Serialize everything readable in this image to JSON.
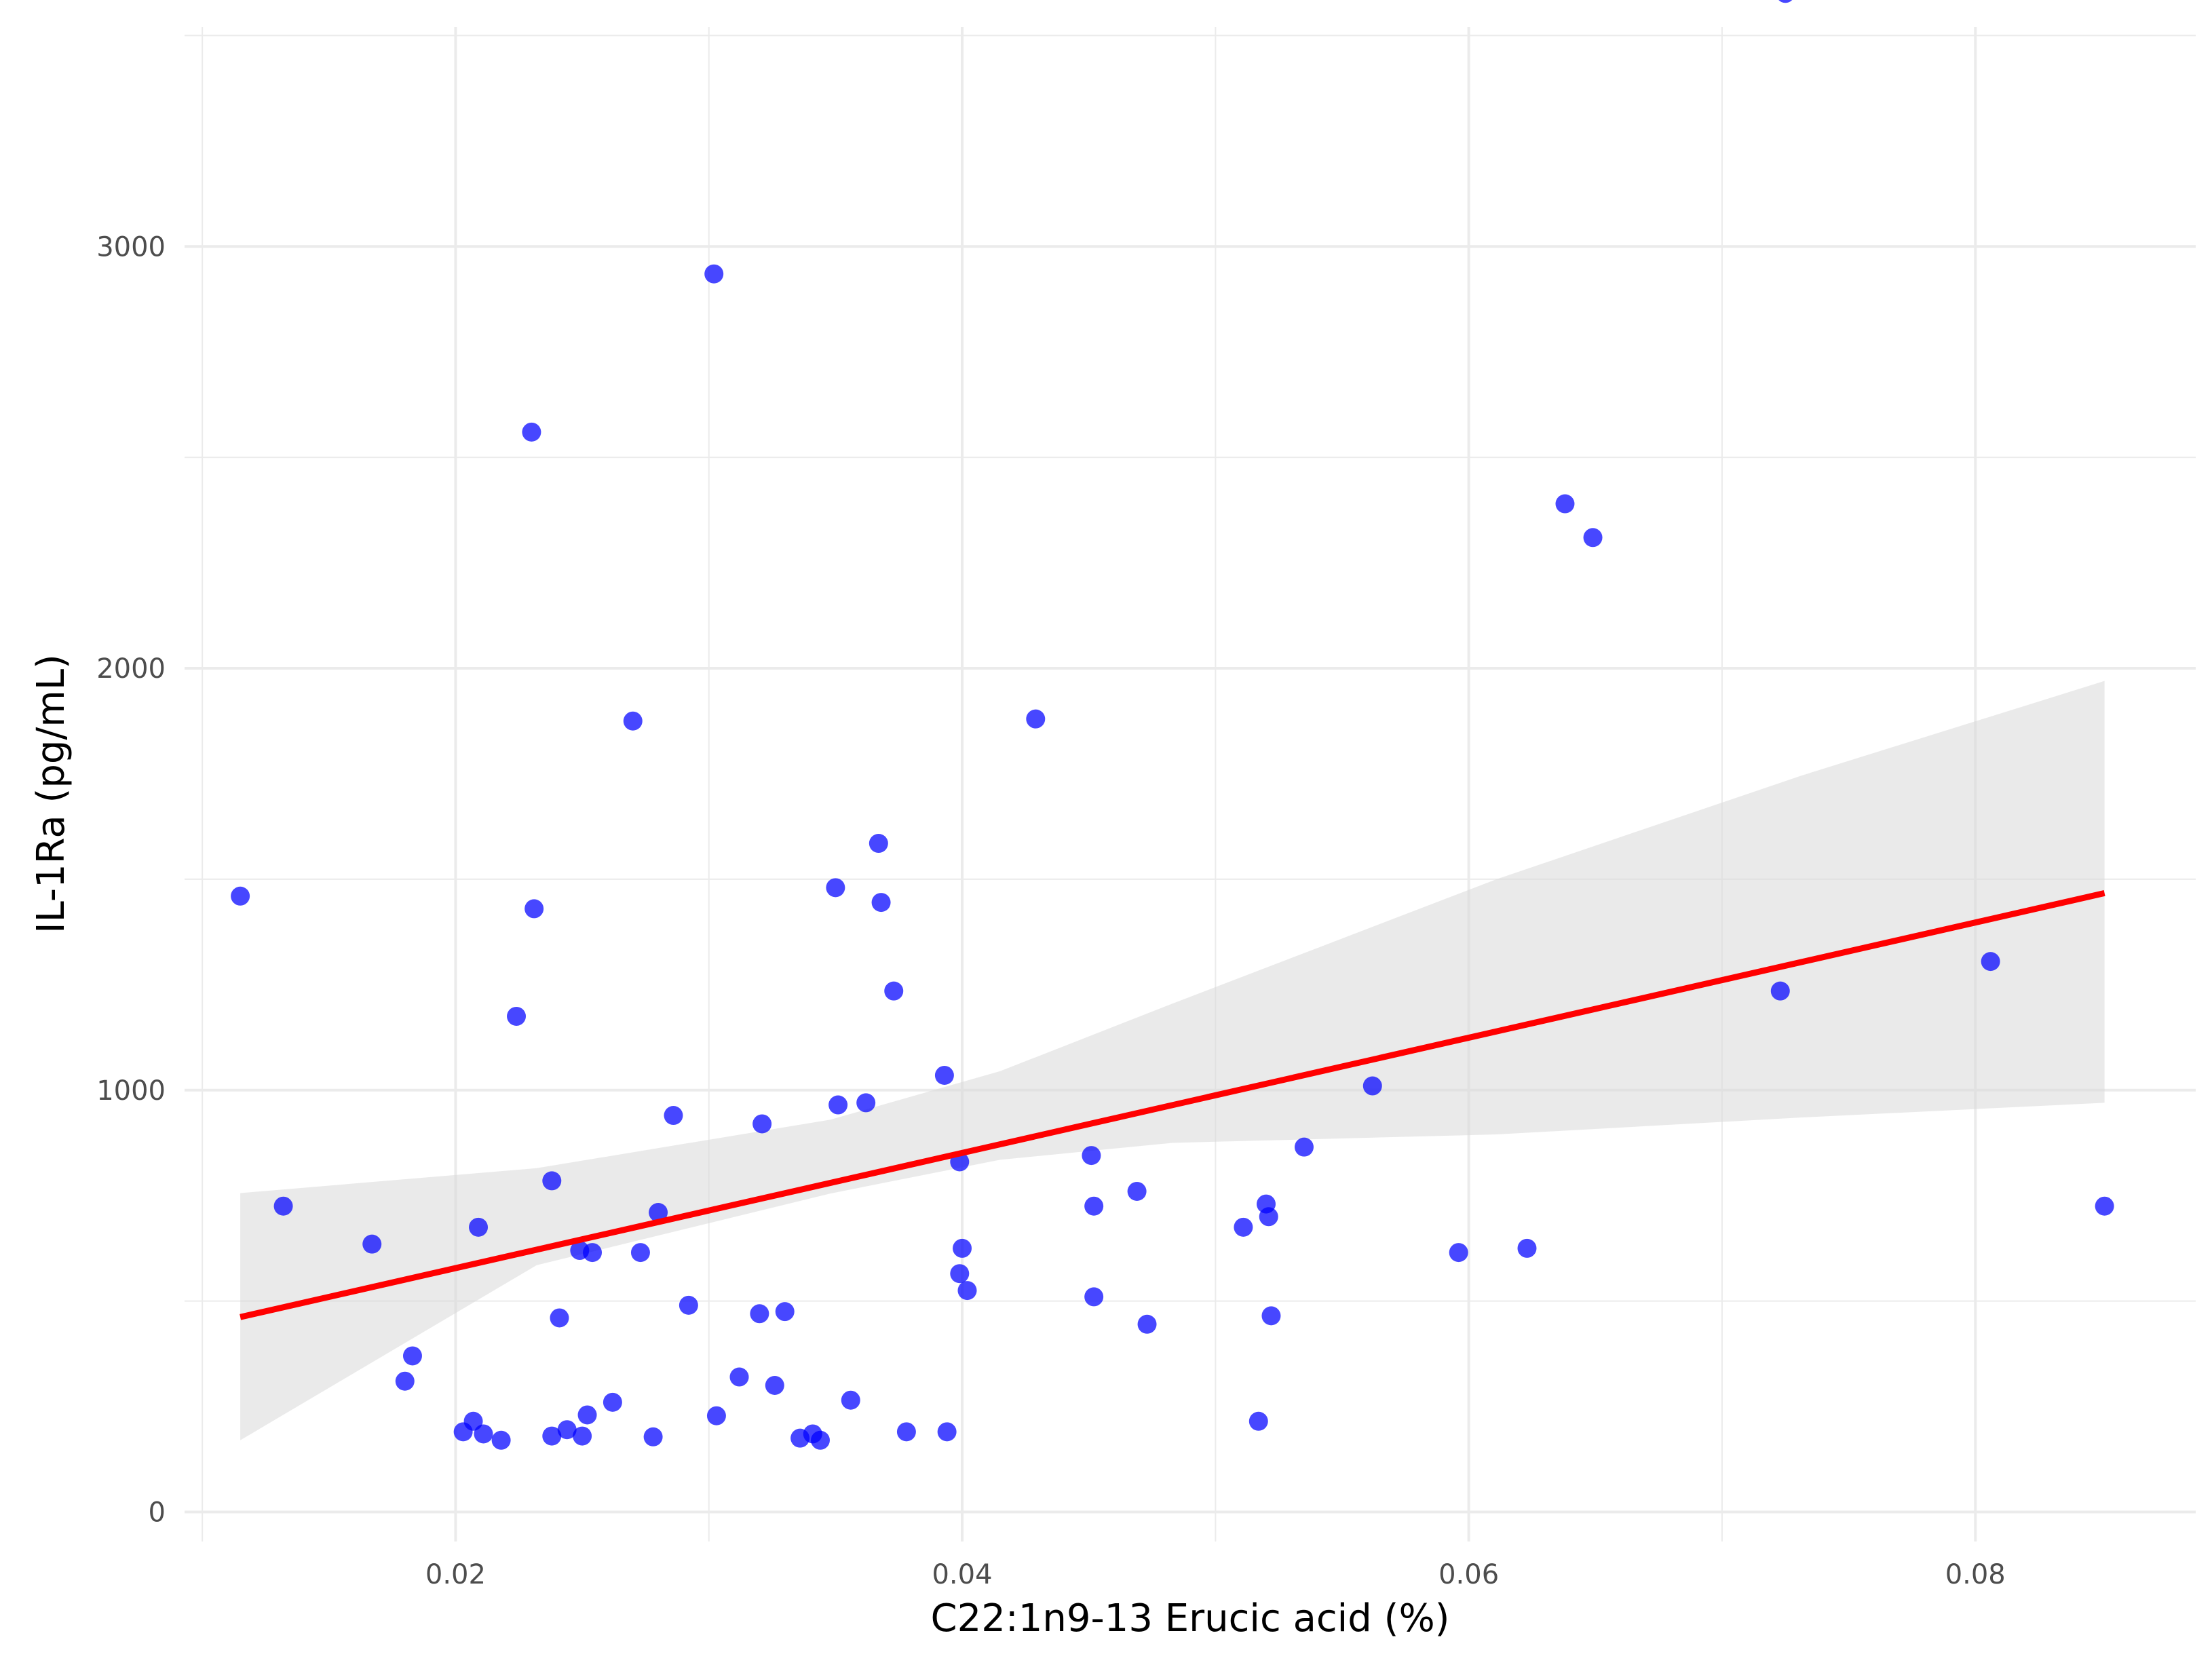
{
  "chart_data": {
    "type": "scatter",
    "title": "",
    "xlabel": "C22:1n9-13 Erucic acid (%)",
    "ylabel": "IL-1Ra (pg/mL)",
    "xlim": [
      0.0093,
      0.0887
    ],
    "ylim": [
      -70,
      3520
    ],
    "x_ticks": [
      0.02,
      0.04,
      0.06,
      0.08
    ],
    "x_tick_labels": [
      "0.02",
      "0.04",
      "0.06",
      "0.08"
    ],
    "y_ticks": [
      0,
      1000,
      2000,
      3000
    ],
    "y_tick_labels": [
      "0",
      "1000",
      "2000",
      "3000"
    ],
    "grid": true,
    "colors": {
      "points": "#0000ff",
      "fit_line": "#ff0000",
      "confidence_band": "#d9d9d9",
      "grid": "#ebebeb"
    },
    "points": [
      {
        "x": 0.0115,
        "y": 1460
      },
      {
        "x": 0.0132,
        "y": 725
      },
      {
        "x": 0.0167,
        "y": 635
      },
      {
        "x": 0.018,
        "y": 310
      },
      {
        "x": 0.0183,
        "y": 370
      },
      {
        "x": 0.0203,
        "y": 190
      },
      {
        "x": 0.0207,
        "y": 215
      },
      {
        "x": 0.0209,
        "y": 675
      },
      {
        "x": 0.0211,
        "y": 185
      },
      {
        "x": 0.0218,
        "y": 170
      },
      {
        "x": 0.0224,
        "y": 1175
      },
      {
        "x": 0.023,
        "y": 2560
      },
      {
        "x": 0.0231,
        "y": 1430
      },
      {
        "x": 0.0238,
        "y": 785
      },
      {
        "x": 0.0238,
        "y": 180
      },
      {
        "x": 0.0241,
        "y": 460
      },
      {
        "x": 0.0244,
        "y": 195
      },
      {
        "x": 0.0249,
        "y": 620
      },
      {
        "x": 0.025,
        "y": 180
      },
      {
        "x": 0.0252,
        "y": 230
      },
      {
        "x": 0.0254,
        "y": 615
      },
      {
        "x": 0.0262,
        "y": 260
      },
      {
        "x": 0.027,
        "y": 1875
      },
      {
        "x": 0.0273,
        "y": 615
      },
      {
        "x": 0.0278,
        "y": 178
      },
      {
        "x": 0.028,
        "y": 710
      },
      {
        "x": 0.0286,
        "y": 940
      },
      {
        "x": 0.0292,
        "y": 490
      },
      {
        "x": 0.0302,
        "y": 2935
      },
      {
        "x": 0.0303,
        "y": 228
      },
      {
        "x": 0.0312,
        "y": 320
      },
      {
        "x": 0.032,
        "y": 470
      },
      {
        "x": 0.0321,
        "y": 920
      },
      {
        "x": 0.0326,
        "y": 300
      },
      {
        "x": 0.033,
        "y": 475
      },
      {
        "x": 0.0336,
        "y": 175
      },
      {
        "x": 0.0341,
        "y": 185
      },
      {
        "x": 0.0344,
        "y": 170
      },
      {
        "x": 0.035,
        "y": 1480
      },
      {
        "x": 0.0351,
        "y": 965
      },
      {
        "x": 0.0356,
        "y": 265
      },
      {
        "x": 0.0362,
        "y": 970
      },
      {
        "x": 0.0367,
        "y": 1585
      },
      {
        "x": 0.0368,
        "y": 1445
      },
      {
        "x": 0.0373,
        "y": 1235
      },
      {
        "x": 0.0378,
        "y": 190
      },
      {
        "x": 0.0393,
        "y": 1035
      },
      {
        "x": 0.0394,
        "y": 190
      },
      {
        "x": 0.0399,
        "y": 830
      },
      {
        "x": 0.0399,
        "y": 565
      },
      {
        "x": 0.04,
        "y": 625
      },
      {
        "x": 0.0402,
        "y": 525
      },
      {
        "x": 0.0429,
        "y": 1880
      },
      {
        "x": 0.0451,
        "y": 845
      },
      {
        "x": 0.0452,
        "y": 725
      },
      {
        "x": 0.0452,
        "y": 510
      },
      {
        "x": 0.0469,
        "y": 760
      },
      {
        "x": 0.0473,
        "y": 445
      },
      {
        "x": 0.0511,
        "y": 675
      },
      {
        "x": 0.0517,
        "y": 215
      },
      {
        "x": 0.052,
        "y": 730
      },
      {
        "x": 0.0521,
        "y": 700
      },
      {
        "x": 0.0522,
        "y": 465
      },
      {
        "x": 0.0535,
        "y": 865
      },
      {
        "x": 0.0562,
        "y": 1010
      },
      {
        "x": 0.0596,
        "y": 615
      },
      {
        "x": 0.0623,
        "y": 625
      },
      {
        "x": 0.0638,
        "y": 2390
      },
      {
        "x": 0.0649,
        "y": 2310
      },
      {
        "x": 0.0723,
        "y": 1235
      },
      {
        "x": 0.0725,
        "y": 3600
      },
      {
        "x": 0.0806,
        "y": 1305
      },
      {
        "x": 0.0851,
        "y": 725
      }
    ],
    "fit": {
      "x": [
        0.0115,
        0.0851
      ],
      "y": [
        462,
        1467
      ]
    },
    "confidence_band": {
      "x": [
        0.0115,
        0.0232,
        0.0348,
        0.0415,
        0.0483,
        0.0611,
        0.0731,
        0.0851
      ],
      "upper": [
        756,
        815,
        930,
        1045,
        1205,
        1500,
        1745,
        1970
      ],
      "lower": [
        170,
        585,
        755,
        835,
        875,
        895,
        935,
        970
      ]
    }
  }
}
